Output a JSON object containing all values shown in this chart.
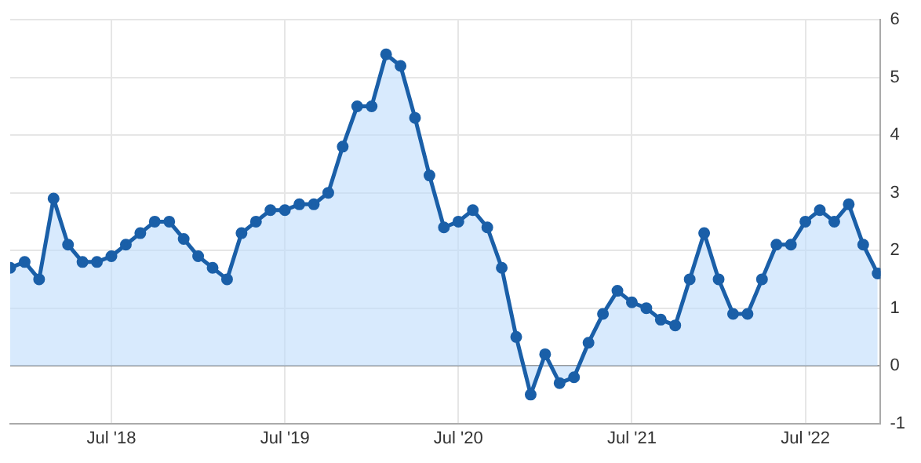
{
  "chart_data": {
    "type": "area",
    "x": [
      "2017-12",
      "2018-01",
      "2018-02",
      "2018-03",
      "2018-04",
      "2018-05",
      "2018-06",
      "2018-07",
      "2018-08",
      "2018-09",
      "2018-10",
      "2018-11",
      "2018-12",
      "2019-01",
      "2019-02",
      "2019-03",
      "2019-04",
      "2019-05",
      "2019-06",
      "2019-07",
      "2019-08",
      "2019-09",
      "2019-10",
      "2019-11",
      "2019-12",
      "2020-01",
      "2020-02",
      "2020-03",
      "2020-04",
      "2020-05",
      "2020-06",
      "2020-07",
      "2020-08",
      "2020-09",
      "2020-10",
      "2020-11",
      "2020-12",
      "2021-01",
      "2021-02",
      "2021-03",
      "2021-04",
      "2021-05",
      "2021-06",
      "2021-07",
      "2021-08",
      "2021-09",
      "2021-10",
      "2021-11",
      "2021-12",
      "2022-01",
      "2022-02",
      "2022-03",
      "2022-04",
      "2022-05",
      "2022-06",
      "2022-07",
      "2022-08",
      "2022-09",
      "2022-10",
      "2022-11",
      "2022-12"
    ],
    "series": [
      {
        "color": "#1a5fa8",
        "values": [
          1.7,
          1.8,
          1.5,
          2.9,
          2.1,
          1.8,
          1.8,
          1.9,
          2.1,
          2.3,
          2.5,
          2.5,
          2.2,
          1.9,
          1.7,
          1.5,
          2.3,
          2.5,
          2.7,
          2.7,
          2.8,
          2.8,
          3.0,
          3.8,
          4.5,
          4.5,
          5.4,
          5.2,
          4.3,
          3.3,
          2.4,
          2.5,
          2.7,
          2.4,
          1.7,
          0.5,
          -0.5,
          0.2,
          -0.3,
          -0.2,
          0.4,
          0.9,
          1.3,
          1.1,
          1.0,
          0.8,
          0.7,
          1.5,
          2.3,
          1.5,
          0.9,
          0.9,
          1.5,
          2.1,
          2.1,
          2.5,
          2.7,
          2.5,
          2.8,
          2.1,
          1.6
        ]
      }
    ],
    "xlim": [
      "2017-12",
      "2022-12"
    ],
    "xticks": [
      {
        "value": "2018-07",
        "label": "Jul '18"
      },
      {
        "value": "2019-07",
        "label": "Jul '19"
      },
      {
        "value": "2020-07",
        "label": "Jul '20"
      },
      {
        "value": "2021-07",
        "label": "Jul '21"
      },
      {
        "value": "2022-07",
        "label": "Jul '22"
      }
    ],
    "ylim": [
      -1,
      6
    ],
    "yticks": [
      -1,
      0,
      1,
      2,
      3,
      4,
      5,
      6
    ],
    "grid": true,
    "marker": "circle",
    "legend": false
  }
}
